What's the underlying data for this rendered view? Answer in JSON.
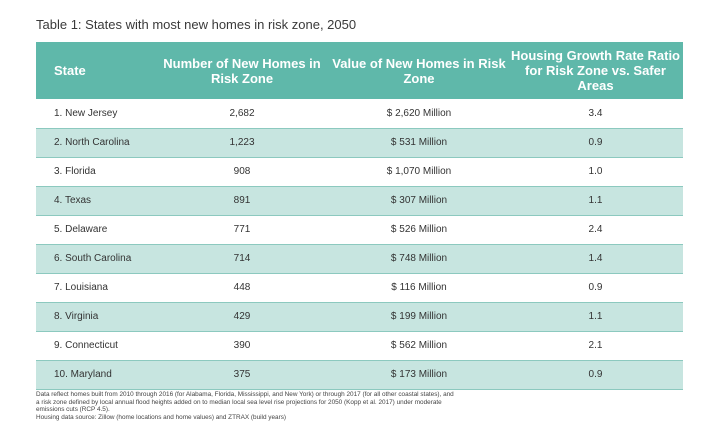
{
  "title": "Table 1: States with most new homes in risk zone, 2050",
  "table": {
    "headers": [
      "State",
      "Number of New Homes in Risk Zone",
      "Value of New Homes in Risk Zone",
      "Housing Growth Rate Ratio for Risk Zone vs. Safer Areas"
    ],
    "rows": [
      [
        "1. New Jersey",
        "2,682",
        "$ 2,620 Million",
        "3.4"
      ],
      [
        "2. North Carolina",
        "1,223",
        "$ 531 Million",
        "0.9"
      ],
      [
        "3. Florida",
        "908",
        "$ 1,070 Million",
        "1.0"
      ],
      [
        "4. Texas",
        "891",
        "$ 307 Million",
        "1.1"
      ],
      [
        "5. Delaware",
        "771",
        "$ 526 Million",
        "2.4"
      ],
      [
        "6. South Carolina",
        "714",
        "$ 748 Million",
        "1.4"
      ],
      [
        "7. Louisiana",
        "448",
        "$ 116 Million",
        "0.9"
      ],
      [
        "8. Virginia",
        "429",
        "$ 199 Million",
        "1.1"
      ],
      [
        "9. Connecticut",
        "390",
        "$ 562 Million",
        "2.1"
      ],
      [
        "10. Maryland",
        "375",
        "$ 173 Million",
        "0.9"
      ]
    ]
  },
  "notes": {
    "line1": "Data reflect homes built from 2010 through 2016 (for Alabama, Florida, Mississippi, and New York) or through 2017 (for all other coastal states), and a risk zone defined by local annual flood heights added on to median local sea level rise projections for 2050 (Kopp et al. 2017) under moderate emissions cuts (RCP 4.5).",
    "line2": "Housing data source: Zillow (home locations and home values) and ZTRAX (build years)"
  },
  "colors": {
    "header_bg": "#5fb8aa",
    "row_alt_bg": "#c7e5e0",
    "row_bg": "#ffffff"
  }
}
